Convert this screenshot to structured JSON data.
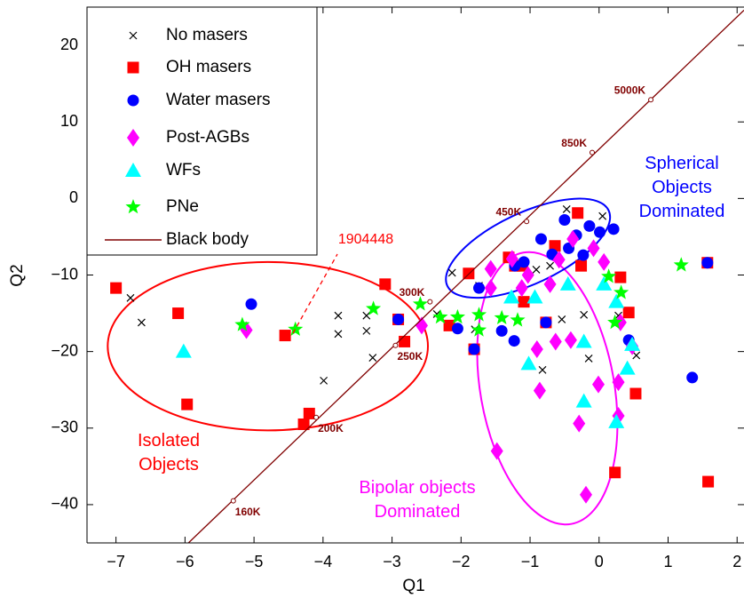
{
  "chart_data": {
    "type": "scatter",
    "xlabel": "Q1",
    "ylabel": "Q2",
    "xlim": [
      -7.42,
      2.1
    ],
    "ylim": [
      -45,
      25
    ],
    "xticks": [
      {
        "value": -7,
        "label": "−7"
      },
      {
        "value": -6,
        "label": "−6"
      },
      {
        "value": -5,
        "label": "−5"
      },
      {
        "value": -4,
        "label": "−4"
      },
      {
        "value": -3,
        "label": "−3"
      },
      {
        "value": -2,
        "label": "−2"
      },
      {
        "value": -1,
        "label": "−1"
      },
      0,
      1,
      2
    ],
    "yticks": [
      {
        "value": -40,
        "label": "−40"
      },
      {
        "value": -30,
        "label": "−30"
      },
      {
        "value": -20,
        "label": "−20"
      },
      {
        "value": -10,
        "label": "−10"
      },
      0,
      10,
      20
    ],
    "grid": false,
    "legend": "top-left",
    "series": [
      {
        "name": "No masers",
        "color": "#000000",
        "marker": "x",
        "x": [
          -6.79,
          -6.63,
          -3.78,
          -3.78,
          -3.37,
          -3.37,
          -3.99,
          -3.28,
          -2.35,
          -2.13,
          -1.8,
          -0.91,
          -0.82,
          -0.54,
          -0.22,
          -0.15,
          0.54,
          0.05,
          -0.47,
          -0.71,
          0.28,
          -1.74
        ],
        "y": [
          -13.0,
          -16.2,
          -15.3,
          -17.7,
          -15.3,
          -17.3,
          -23.8,
          -20.8,
          -15.1,
          -9.7,
          -17.1,
          -9.3,
          -22.4,
          -15.8,
          -15.2,
          -20.9,
          -20.5,
          -2.3,
          -1.4,
          -8.8,
          -15.3,
          -11.4
        ]
      },
      {
        "name": "OH masers",
        "color": "#ff0000",
        "marker": "square",
        "x": [
          -7,
          -6.1,
          -5.97,
          -4.55,
          -4.2,
          -4.28,
          -3.1,
          -2.82,
          -2.91,
          -2.17,
          -1.89,
          -1.81,
          -1.31,
          -1.11,
          -0.77,
          -0.31,
          0.23,
          0.43,
          0.53,
          1.57,
          1.58,
          -0.64,
          -0.26,
          0.31,
          -1.09,
          -1.22
        ],
        "y": [
          -11.7,
          -15,
          -26.9,
          -17.9,
          -28.1,
          -29.5,
          -11.2,
          -18.7,
          -15.8,
          -16.6,
          -9.8,
          -19.7,
          -7.7,
          -8.8,
          -16.2,
          -1.9,
          -35.8,
          -14.9,
          -25.5,
          -8.4,
          -37,
          -6.2,
          -8.8,
          -10.3,
          -13.5,
          -8.8
        ]
      },
      {
        "name": "Water masers",
        "color": "#0000ff",
        "marker": "circle",
        "x": [
          -5.04,
          -2.91,
          -2.05,
          -1.81,
          -1.41,
          -1.23,
          -1.09,
          -0.77,
          -0.5,
          -0.33,
          -0.14,
          0.01,
          0.21,
          -0.84,
          -0.68,
          -0.44,
          -0.23,
          -1.74,
          1.35,
          1.57,
          0.43,
          -1.22
        ],
        "y": [
          -13.8,
          -15.8,
          -17,
          -19.7,
          -17.3,
          -18.6,
          -8.3,
          -16.2,
          -2.8,
          -4.8,
          -3.6,
          -4.4,
          -4.0,
          -5.3,
          -7.3,
          -6.5,
          -7.4,
          -11.7,
          -23.4,
          -8.4,
          -18.5,
          -8.8
        ]
      },
      {
        "name": "Post-AGBs",
        "color": "#ff00ff",
        "marker": "diamond",
        "x": [
          -5.11,
          -2.57,
          -1.57,
          -1.57,
          -1.48,
          -1.26,
          -1.03,
          -0.9,
          -0.86,
          -0.63,
          -0.58,
          -0.38,
          -0.41,
          -0.29,
          -0.19,
          -0.01,
          0.07,
          0.28,
          0.28,
          0.31,
          0.48,
          -1.12,
          -0.71,
          -0.08
        ],
        "y": [
          -17.2,
          -16.6,
          -9.2,
          -11.7,
          -33,
          -7.9,
          -10,
          -19.7,
          -25.1,
          -18.7,
          -8,
          -5.3,
          -18.5,
          -29.4,
          -38.7,
          -24.3,
          -8.3,
          -28.4,
          -24,
          -16.2,
          -19.3,
          -11.7,
          -11.2,
          -6.5
        ]
      },
      {
        "name": "WFs",
        "color": "#00ffff",
        "marker": "triangle",
        "x": [
          -6.02,
          -1.02,
          -0.93,
          -0.22,
          -0.22,
          0.07,
          0.25,
          0.25,
          0.41,
          0.48,
          -1.27,
          -0.45
        ],
        "y": [
          -20,
          -21.6,
          -12.9,
          -18.7,
          -26.5,
          -11.2,
          -13.5,
          -29.2,
          -22.2,
          -19.1,
          -12.9,
          -11.2
        ]
      },
      {
        "name": "PNe",
        "color": "#00ff00",
        "marker": "star",
        "x": [
          -5.17,
          -4.4,
          -3.27,
          -2.59,
          -2.3,
          -2.05,
          -1.74,
          -1.74,
          -1.41,
          -1.18,
          0.14,
          0.32,
          0.23,
          1.19
        ],
        "y": [
          -16.5,
          -17.1,
          -14.4,
          -13.8,
          -15.5,
          -15.5,
          -15.2,
          -17.2,
          -15.6,
          -15.9,
          -10.2,
          -12.3,
          -16.2,
          -8.7
        ]
      },
      {
        "name": "Black body",
        "color": "#800000",
        "marker": "line",
        "x": [
          -5.95,
          2.1
        ],
        "y": [
          -45,
          24.6
        ]
      }
    ],
    "temperature_marks": [
      {
        "label": "160K",
        "x": -5.3,
        "y": -39.5
      },
      {
        "label": "200K",
        "x": -4.1,
        "y": -28.6
      },
      {
        "label": "250K",
        "x": -2.95,
        "y": -19.2
      },
      {
        "label": "300K",
        "x": -2.45,
        "y": -13.5
      },
      {
        "label": "450K",
        "x": -1.05,
        "y": -3
      },
      {
        "label": "850K",
        "x": -0.1,
        "y": 6
      },
      {
        "label": "5000K",
        "x": 0.75,
        "y": 12.9
      }
    ],
    "regions": [
      {
        "label": "Isolated Objects",
        "color": "#ff0000",
        "cx": -4.8,
        "cy": -19.3,
        "rx": 2.32,
        "ry": 11.0,
        "angle": 0
      },
      {
        "label": "Bipolar objects Dominated",
        "color": "#ff00ff",
        "cx": -0.75,
        "cy": -24.8,
        "rx": 0.97,
        "ry": 18.0,
        "angle": -10
      },
      {
        "label": "Spherical Objects Dominated",
        "color": "#0000ff",
        "cx": -1.03,
        "cy": -6.5,
        "rx": 1.29,
        "ry": 4.65,
        "angle": -25
      }
    ],
    "callout": {
      "label": "1904448",
      "color": "#ff0000"
    }
  }
}
